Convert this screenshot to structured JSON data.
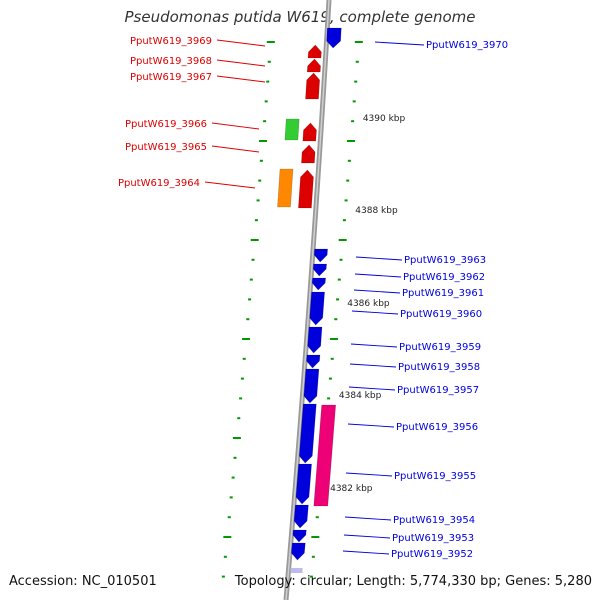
{
  "title": "Pseudomonas putida W619, complete genome",
  "footer": {
    "accession": "Accession: NC_010501",
    "summary": "Topology: circular; Length: 5,774,330 bp; Genes: 5,280"
  },
  "colors": {
    "forward_strand": "#0000dd",
    "reverse_strand": "#dd0000",
    "rna": "#33cc33",
    "orange_feature": "#ff8800",
    "magenta_feature": "#ee0077",
    "backbone": "#999999",
    "tick": "#009900"
  },
  "scale_labels": [
    "4390 kbp",
    "4388 kbp",
    "4386 kbp",
    "4384 kbp",
    "4382 kbp"
  ],
  "genes_left": [
    "PputW619_3969",
    "PputW619_3968",
    "PputW619_3967",
    "PputW619_3966",
    "PputW619_3965",
    "PputW619_3964"
  ],
  "genes_right": [
    "PputW619_3970",
    "PputW619_3963",
    "PputW619_3962",
    "PputW619_3961",
    "PputW619_3960",
    "PputW619_3959",
    "PputW619_3958",
    "PputW619_3957",
    "PputW619_3956",
    "PputW619_3955",
    "PputW619_3954",
    "PputW619_3953",
    "PputW619_3952"
  ]
}
